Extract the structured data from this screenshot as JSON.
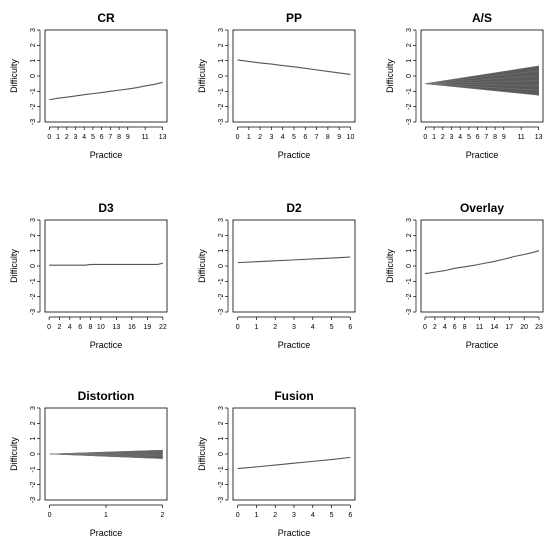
{
  "chart_data": [
    {
      "type": "line",
      "title": "CR",
      "xlabel": "Practice",
      "ylabel": "Difficulty",
      "xlim": [
        -0.5,
        13.5
      ],
      "ylim": [
        -3,
        3
      ],
      "xticks": [
        0,
        1,
        2,
        3,
        4,
        5,
        6,
        7,
        8,
        9,
        11,
        13
      ],
      "yticks": [
        -3,
        -2,
        -1,
        0,
        1,
        2,
        3
      ],
      "series": [
        {
          "x": [
            0,
            1,
            2,
            3,
            4,
            5,
            6,
            7,
            8,
            9,
            10,
            11,
            12,
            13
          ],
          "values": [
            -1.55,
            -1.45,
            -1.38,
            -1.3,
            -1.22,
            -1.15,
            -1.08,
            -1.0,
            -0.92,
            -0.85,
            -0.76,
            -0.65,
            -0.55,
            -0.42
          ]
        }
      ]
    },
    {
      "type": "line",
      "title": "PP",
      "xlabel": "Practice",
      "ylabel": "Difficulty",
      "xlim": [
        -0.4,
        10.4
      ],
      "ylim": [
        -3,
        3
      ],
      "xticks": [
        0,
        1,
        2,
        3,
        4,
        5,
        6,
        7,
        8,
        9,
        10
      ],
      "yticks": [
        -3,
        -2,
        -1,
        0,
        1,
        2,
        3
      ],
      "series": [
        {
          "x": [
            0,
            1,
            2,
            3,
            4,
            5,
            6,
            7,
            8,
            9,
            10
          ],
          "values": [
            1.05,
            0.95,
            0.85,
            0.78,
            0.68,
            0.6,
            0.5,
            0.4,
            0.3,
            0.2,
            0.1
          ]
        }
      ]
    },
    {
      "type": "area",
      "title": "A/S",
      "xlabel": "Practice",
      "ylabel": "Difficulty",
      "xlim": [
        -0.5,
        13.5
      ],
      "ylim": [
        -3,
        3
      ],
      "xticks": [
        0,
        1,
        2,
        3,
        4,
        5,
        6,
        7,
        8,
        9,
        11,
        13
      ],
      "yticks": [
        -3,
        -2,
        -1,
        0,
        1,
        2,
        3
      ],
      "band": {
        "x": [
          0,
          13
        ],
        "upper": [
          -0.5,
          0.65
        ],
        "lower": [
          -0.5,
          -1.25
        ],
        "start": -0.5
      }
    },
    {
      "type": "line",
      "title": "D3",
      "xlabel": "Practice",
      "ylabel": "Difficulty",
      "xlim": [
        -0.8,
        22.8
      ],
      "ylim": [
        -3,
        3
      ],
      "xticks": [
        0,
        2,
        4,
        6,
        8,
        10,
        13,
        16,
        19,
        22
      ],
      "yticks": [
        -3,
        -2,
        -1,
        0,
        1,
        2,
        3
      ],
      "series": [
        {
          "x": [
            0,
            7,
            8,
            21,
            22
          ],
          "values": [
            0.05,
            0.05,
            0.1,
            0.1,
            0.18
          ]
        }
      ]
    },
    {
      "type": "line",
      "title": "D2",
      "xlabel": "Practice",
      "ylabel": "Difficulty",
      "xlim": [
        -0.25,
        6.25
      ],
      "ylim": [
        -3,
        3
      ],
      "xticks": [
        0,
        1,
        2,
        3,
        4,
        5,
        6
      ],
      "yticks": [
        -3,
        -2,
        -1,
        0,
        1,
        2,
        3
      ],
      "series": [
        {
          "x": [
            0,
            1,
            2,
            3,
            4,
            5,
            6
          ],
          "values": [
            0.22,
            0.28,
            0.34,
            0.4,
            0.46,
            0.52,
            0.58
          ]
        }
      ]
    },
    {
      "type": "line",
      "title": "Overlay",
      "xlabel": "Practice",
      "ylabel": "Difficulty",
      "xlim": [
        -0.8,
        23.8
      ],
      "ylim": [
        -3,
        3
      ],
      "xticks": [
        0,
        2,
        4,
        6,
        8,
        11,
        14,
        17,
        20,
        23
      ],
      "yticks": [
        -3,
        -2,
        -1,
        0,
        1,
        2,
        3
      ],
      "series": [
        {
          "x": [
            0,
            2,
            4,
            6,
            8,
            10,
            12,
            14,
            16,
            18,
            20,
            22,
            23
          ],
          "values": [
            -0.5,
            -0.4,
            -0.3,
            -0.15,
            -0.05,
            0.05,
            0.18,
            0.3,
            0.45,
            0.62,
            0.75,
            0.9,
            1.0
          ]
        }
      ]
    },
    {
      "type": "area",
      "title": "Distortion",
      "xlabel": "Practice",
      "ylabel": "Difficulty",
      "xlim": [
        -0.08,
        2.08
      ],
      "ylim": [
        -3,
        3
      ],
      "xticks": [
        0,
        1,
        2
      ],
      "yticks": [
        -3,
        -2,
        -1,
        0,
        1,
        2,
        3
      ],
      "band": {
        "x": [
          0,
          2
        ],
        "upper": [
          0,
          0.25
        ],
        "lower": [
          0,
          -0.3
        ],
        "start": 0
      }
    },
    {
      "type": "line",
      "title": "Fusion",
      "xlabel": "Practice",
      "ylabel": "Difficulty",
      "xlim": [
        -0.25,
        6.25
      ],
      "ylim": [
        -3,
        3
      ],
      "xticks": [
        0,
        1,
        2,
        3,
        4,
        5,
        6
      ],
      "yticks": [
        -3,
        -2,
        -1,
        0,
        1,
        2,
        3
      ],
      "series": [
        {
          "x": [
            0,
            1,
            2,
            3,
            4,
            5,
            6
          ],
          "values": [
            -0.95,
            -0.84,
            -0.72,
            -0.6,
            -0.48,
            -0.36,
            -0.22
          ]
        }
      ]
    }
  ],
  "colors": {
    "line": "#555555",
    "band": "#5a5a5a",
    "axis": "#000000"
  }
}
